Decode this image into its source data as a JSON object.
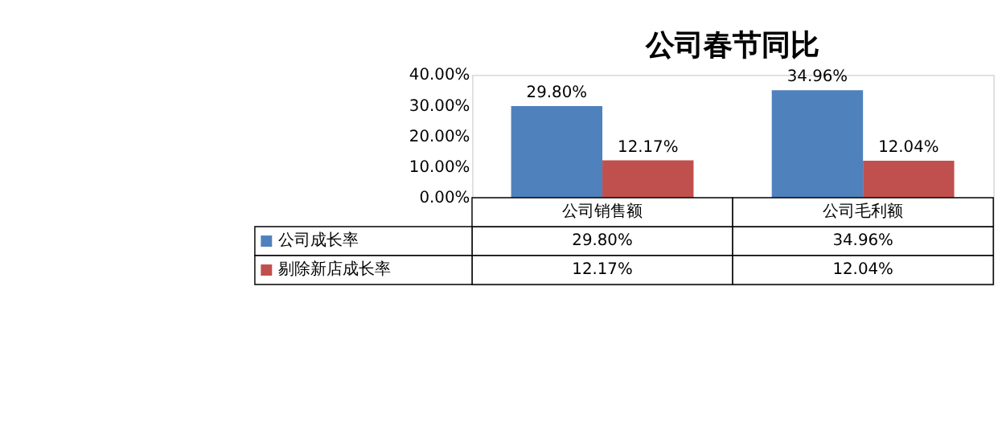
{
  "chart_data": {
    "type": "bar",
    "title": "公司春节同比",
    "categories": [
      "公司销售额",
      "公司毛利额"
    ],
    "series": [
      {
        "name": "公司成长率",
        "color": "#4f81bd",
        "values": [
          29.8,
          34.96
        ],
        "value_labels": [
          "29.80%",
          "34.96%"
        ]
      },
      {
        "name": "剔除新店成长率",
        "color": "#c0504d",
        "values": [
          12.17,
          12.04
        ],
        "value_labels": [
          "12.17%",
          "12.04%"
        ]
      }
    ],
    "ylim": [
      0,
      40
    ],
    "yticks": [
      {
        "value": 0,
        "label": "0.00%"
      },
      {
        "value": 10,
        "label": "10.00%"
      },
      {
        "value": 20,
        "label": "20.00%"
      },
      {
        "value": 30,
        "label": "30.00%"
      },
      {
        "value": 40,
        "label": "40.00%"
      }
    ],
    "data_labels": true,
    "grid": false,
    "legend": "bottom left"
  }
}
